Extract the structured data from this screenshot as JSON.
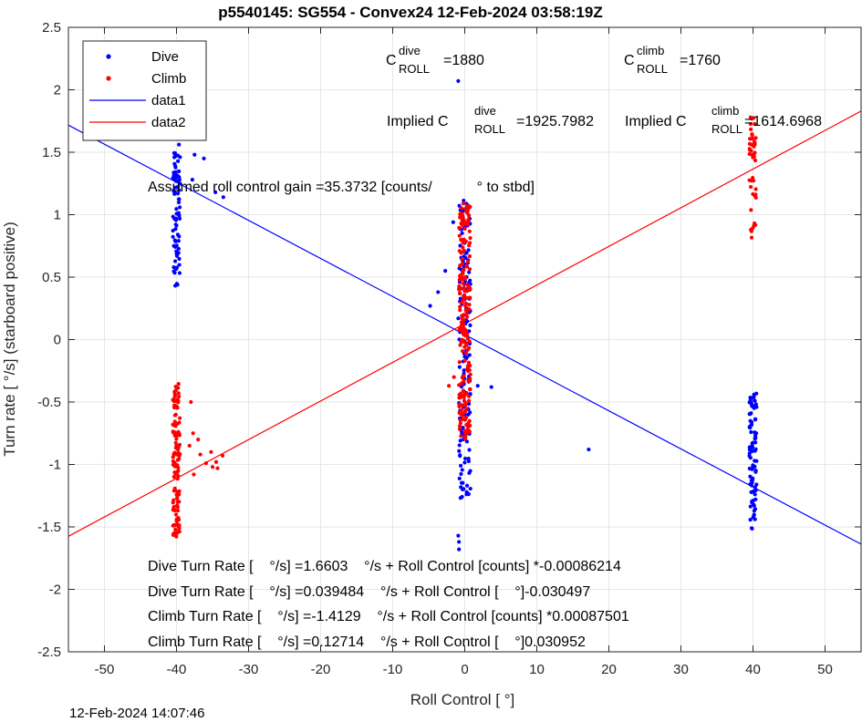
{
  "title": "p5540145: SG554 - Convex24 12-Feb-2024 03:58:19Z",
  "timestamp": "12-Feb-2024 14:07:46",
  "chart_data": {
    "type": "scatter",
    "xlabel": "Roll Control [   °]",
    "ylabel": "Turn rate [   °/s] (starboard positive)",
    "xlim": [
      -55,
      55
    ],
    "ylim": [
      -2.5,
      2.5
    ],
    "xticks": [
      -50,
      -40,
      -30,
      -20,
      -10,
      0,
      10,
      20,
      30,
      40,
      50
    ],
    "yticks": [
      -2.5,
      -2,
      -1.5,
      -1,
      -0.5,
      0,
      0.5,
      1,
      1.5,
      2,
      2.5
    ],
    "xtick_labels": [
      "-50",
      "-40",
      "-30",
      "-20",
      "-10",
      "0",
      "10",
      "20",
      "30",
      "40",
      "50"
    ],
    "ytick_labels": [
      "-2.5",
      "-2",
      "-1.5",
      "-1",
      "-0.5",
      "0",
      "0.5",
      "1",
      "1.5",
      "2",
      "2.5"
    ],
    "grid": true,
    "legend": {
      "placement": "top-left",
      "entries": [
        {
          "label": "Dive",
          "marker": "dot",
          "color": "#0000ff"
        },
        {
          "label": "Climb",
          "marker": "dot",
          "color": "#ff0000"
        },
        {
          "label": "data1",
          "marker": "line",
          "color": "#0000ff"
        },
        {
          "label": "data2",
          "marker": "line",
          "color": "#ff0000"
        }
      ]
    },
    "fit_lines": [
      {
        "label": "data1",
        "color": "#0000ff",
        "intercept": 0.039484,
        "slope": -0.030497
      },
      {
        "label": "data2",
        "color": "#ff0000",
        "intercept": 0.12714,
        "slope": 0.030952
      }
    ],
    "series": [
      {
        "name": "Dive",
        "color": "#0000ff",
        "clusters": [
          {
            "x": -40,
            "x_spread": 0.5,
            "y_min": 0.42,
            "y_max": 1.73,
            "count": 85
          },
          {
            "x": 0,
            "x_spread": 0.8,
            "y_min": -1.3,
            "y_max": 1.13,
            "count": 150
          },
          {
            "x": 40,
            "x_spread": 0.5,
            "y_min": -1.52,
            "y_max": -0.42,
            "count": 95
          }
        ],
        "outliers": [
          [
            -0.9,
            2.07
          ],
          [
            -37.5,
            1.48
          ],
          [
            -36.2,
            1.45
          ],
          [
            -37.8,
            1.28
          ],
          [
            -33.5,
            1.14
          ],
          [
            -34.6,
            1.18
          ],
          [
            -4.8,
            0.27
          ],
          [
            -3.7,
            0.38
          ],
          [
            -2.7,
            0.55
          ],
          [
            -1.6,
            0.94
          ],
          [
            -0.8,
            -1.62
          ],
          [
            -0.8,
            -1.68
          ],
          [
            -0.9,
            -1.57
          ],
          [
            1.8,
            -0.37
          ],
          [
            3.7,
            -0.38
          ],
          [
            17.2,
            -0.88
          ],
          [
            -0.3,
            -1.2
          ],
          [
            -0.9,
            0.17
          ]
        ]
      },
      {
        "name": "Climb",
        "color": "#ff0000",
        "clusters": [
          {
            "x": -40,
            "x_spread": 0.5,
            "y_min": -1.58,
            "y_max": -0.35,
            "count": 120
          },
          {
            "x": 0,
            "x_spread": 0.8,
            "y_min": -0.8,
            "y_max": 1.12,
            "count": 220
          },
          {
            "x": 40,
            "x_spread": 0.5,
            "y_min": 0.8,
            "y_max": 1.78,
            "count": 45
          }
        ],
        "outliers": [
          [
            -38.0,
            -0.5
          ],
          [
            -37.7,
            -0.75
          ],
          [
            -36.7,
            -0.92
          ],
          [
            -35.9,
            -0.99
          ],
          [
            -35.2,
            -0.9
          ],
          [
            -34.5,
            -0.98
          ],
          [
            -33.6,
            -0.93
          ],
          [
            -34.3,
            -1.03
          ],
          [
            -35.0,
            -1.02
          ],
          [
            -37.6,
            -1.08
          ],
          [
            -38.2,
            -0.85
          ],
          [
            -37.0,
            -0.8
          ],
          [
            -2.2,
            -0.37
          ],
          [
            -1.5,
            -0.3
          ],
          [
            -0.5,
            0.93
          ]
        ]
      }
    ],
    "annotations": [
      {
        "main": "C",
        "sup": "dive",
        "sub": "ROLL",
        "value": "=1880"
      },
      {
        "main": "C",
        "sup": "climb",
        "sub": "ROLL",
        "value": "=1760"
      },
      {
        "main": "Implied C",
        "sup": "dive",
        "sub": "ROLL",
        "value": "=1925.7982"
      },
      {
        "main": "Implied C",
        "sup": "climb",
        "sub": "ROLL",
        "value": "=1614.6968"
      }
    ],
    "gain_text": "Assumed roll control gain =35.3732 [counts/           ° to stbd]",
    "equations": [
      "Dive Turn Rate [    °/s] =1.6603    °/s + Roll Control [counts] *-0.00086214",
      "Dive Turn Rate [    °/s] =0.039484    °/s + Roll Control [    °]-0.030497",
      "Climb Turn Rate [    °/s] =-1.4129    °/s + Roll Control [counts] *0.00087501",
      "Climb Turn Rate [    °/s] =0.12714    °/s + Roll Control [    °]0.030952"
    ]
  }
}
